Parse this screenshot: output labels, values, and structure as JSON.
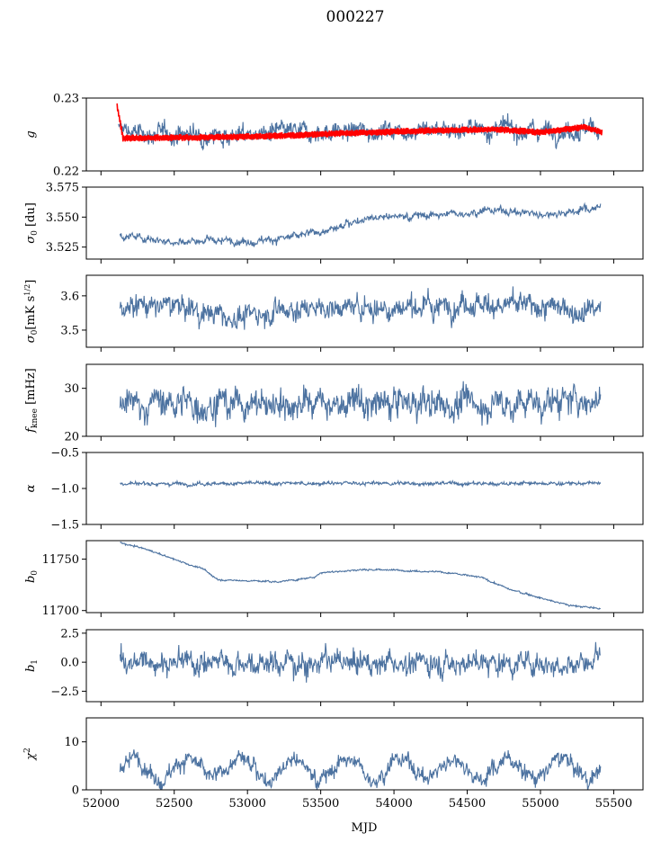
{
  "figure": {
    "title": "000227",
    "xlabel": "MJD"
  },
  "colors": {
    "series": "#4c72a0",
    "highlight": "#ff0000",
    "axes": "#000000",
    "background": "#ffffff"
  },
  "chart_data": [
    {
      "type": "line",
      "ylabel": "g",
      "xlim": [
        51900,
        55700
      ],
      "ylim": [
        0.22,
        0.23
      ],
      "yticks": [
        0.22,
        0.23
      ],
      "ytick_labels": [
        "0.22",
        "0.23"
      ],
      "series": [
        {
          "color": "#4c72a0",
          "x_start": 52120,
          "x_end": 55400,
          "mean": 0.2252,
          "spread": 0.0009,
          "trend": [
            [
              52120,
              0.2258
            ],
            [
              52300,
              0.225
            ],
            [
              53000,
              0.225
            ],
            [
              53500,
              0.2253
            ],
            [
              54000,
              0.2257
            ],
            [
              54500,
              0.2258
            ],
            [
              55000,
              0.2256
            ],
            [
              55400,
              0.2258
            ]
          ]
        },
        {
          "color": "#ff0000",
          "x_start": 52110,
          "x_end": 55420,
          "mean": 0.2248,
          "spread": 0.0004,
          "trend": [
            [
              52110,
              0.229
            ],
            [
              52150,
              0.2245
            ],
            [
              52700,
              0.2246
            ],
            [
              53200,
              0.2248
            ],
            [
              53700,
              0.2252
            ],
            [
              54200,
              0.2255
            ],
            [
              54700,
              0.2257
            ],
            [
              55000,
              0.2253
            ],
            [
              55300,
              0.226
            ],
            [
              55420,
              0.2253
            ]
          ]
        }
      ]
    },
    {
      "type": "line",
      "ylabel": "σ0 [du]",
      "xlim": [
        51900,
        55700
      ],
      "ylim": [
        3.515,
        3.575
      ],
      "yticks": [
        3.525,
        3.55,
        3.575
      ],
      "ytick_labels": [
        "3.525",
        "3.550",
        "3.575"
      ],
      "series": [
        {
          "color": "#4c72a0",
          "x_start": 52130,
          "x_end": 55410,
          "mean": 0.0,
          "spread": 0.0022,
          "trend": [
            [
              52130,
              3.535
            ],
            [
              52500,
              3.53
            ],
            [
              53000,
              3.53
            ],
            [
              53300,
              3.533
            ],
            [
              53600,
              3.54
            ],
            [
              53800,
              3.55
            ],
            [
              54300,
              3.552
            ],
            [
              54700,
              3.556
            ],
            [
              55000,
              3.552
            ],
            [
              55410,
              3.558
            ]
          ]
        }
      ]
    },
    {
      "type": "line",
      "ylabel": "σ0[mK s^1/2]",
      "xlim": [
        51900,
        55700
      ],
      "ylim": [
        3.45,
        3.66
      ],
      "yticks": [
        3.5,
        3.6
      ],
      "ytick_labels": [
        "3.5",
        "3.6"
      ],
      "series": [
        {
          "color": "#4c72a0",
          "x_start": 52130,
          "x_end": 55410,
          "mean": 0.0,
          "spread": 0.022,
          "trend": [
            [
              52130,
              3.575
            ],
            [
              52500,
              3.57
            ],
            [
              52900,
              3.535
            ],
            [
              53200,
              3.56
            ],
            [
              53600,
              3.565
            ],
            [
              54000,
              3.565
            ],
            [
              54500,
              3.58
            ],
            [
              55000,
              3.565
            ],
            [
              55410,
              3.56
            ]
          ]
        }
      ]
    },
    {
      "type": "line",
      "ylabel": "fknee [mHz]",
      "xlim": [
        51900,
        55700
      ],
      "ylim": [
        20,
        35
      ],
      "yticks": [
        20,
        30
      ],
      "ytick_labels": [
        "20",
        "30"
      ],
      "series": [
        {
          "color": "#4c72a0",
          "x_start": 52130,
          "x_end": 55410,
          "mean": 0.0,
          "spread": 2.2,
          "trend": [
            [
              52130,
              27
            ],
            [
              53000,
              27
            ],
            [
              54000,
              26.5
            ],
            [
              55000,
              27
            ],
            [
              55410,
              27.5
            ]
          ]
        }
      ]
    },
    {
      "type": "line",
      "ylabel": "α",
      "xlim": [
        51900,
        55700
      ],
      "ylim": [
        -1.5,
        -0.5
      ],
      "yticks": [
        -1.5,
        -1.0,
        -0.5
      ],
      "ytick_labels": [
        "−1.5",
        "−1.0",
        "−0.5"
      ],
      "series": [
        {
          "color": "#4c72a0",
          "x_start": 52130,
          "x_end": 55410,
          "mean": 0.0,
          "spread": 0.018,
          "trend": [
            [
              52130,
              -0.93
            ],
            [
              55410,
              -0.93
            ]
          ]
        }
      ]
    },
    {
      "type": "line",
      "ylabel": "b0",
      "xlim": [
        51900,
        55700
      ],
      "ylim": [
        11698,
        11768
      ],
      "yticks": [
        11700,
        11750
      ],
      "ytick_labels": [
        "11700",
        "11750"
      ],
      "series": [
        {
          "color": "#4c72a0",
          "x_start": 52130,
          "x_end": 55410,
          "mean": 0.0,
          "spread": 0.6,
          "trend": [
            [
              52130,
              11766
            ],
            [
              52300,
              11760
            ],
            [
              52500,
              11750
            ],
            [
              52700,
              11740
            ],
            [
              52800,
              11730
            ],
            [
              53200,
              11728
            ],
            [
              53450,
              11732
            ],
            [
              53500,
              11737
            ],
            [
              53800,
              11740
            ],
            [
              54300,
              11738
            ],
            [
              54600,
              11732
            ],
            [
              54800,
              11720
            ],
            [
              55200,
              11705
            ],
            [
              55410,
              11702
            ]
          ]
        }
      ]
    },
    {
      "type": "line",
      "ylabel": "b1",
      "xlim": [
        51900,
        55700
      ],
      "ylim": [
        -3.4,
        2.8
      ],
      "yticks": [
        -2.5,
        0.0,
        2.5
      ],
      "ytick_labels": [
        "−2.5",
        "0.0",
        "2.5"
      ],
      "series": [
        {
          "color": "#4c72a0",
          "x_start": 52130,
          "x_end": 55410,
          "mean": 0.0,
          "spread": 0.7,
          "trend": [
            [
              52130,
              0.0
            ],
            [
              55410,
              0.0
            ]
          ]
        }
      ]
    },
    {
      "type": "line",
      "ylabel": "χ²",
      "xlim": [
        51900,
        55700
      ],
      "ylim": [
        0,
        15
      ],
      "yticks": [
        0,
        10
      ],
      "ytick_labels": [
        "0",
        "10"
      ],
      "xticks": [
        52000,
        52500,
        53000,
        53500,
        54000,
        54500,
        55000,
        55500
      ],
      "xtick_labels": [
        "52000",
        "52500",
        "53000",
        "53500",
        "54000",
        "54500",
        "55000",
        "55500"
      ],
      "series": [
        {
          "color": "#4c72a0",
          "x_start": 52130,
          "x_end": 55410,
          "mean": 0.0,
          "spread": 1.2,
          "seasonal": 2.0,
          "trend": [
            [
              52130,
              4.5
            ],
            [
              55410,
              4.5
            ]
          ]
        }
      ]
    }
  ]
}
